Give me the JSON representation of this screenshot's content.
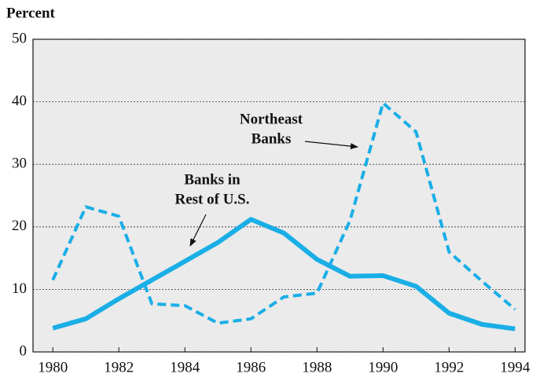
{
  "chart_data": {
    "type": "line",
    "y_axis_label": "Percent",
    "x": [
      1980,
      1981,
      1982,
      1983,
      1984,
      1985,
      1986,
      1987,
      1988,
      1989,
      1990,
      1991,
      1992,
      1993,
      1994
    ],
    "series": [
      {
        "name": "Northeast Banks",
        "color": "#1aaee6",
        "dashed": true,
        "values": [
          11.5,
          23.2,
          21.7,
          7.7,
          7.4,
          4.6,
          5.3,
          8.8,
          9.4,
          21,
          39.8,
          35.2,
          16,
          11.3,
          6.8
        ]
      },
      {
        "name": "Banks in Rest of U.S.",
        "color": "#1aaee6",
        "dashed": false,
        "values": [
          3.8,
          5.3,
          8.5,
          11.5,
          14.5,
          17.5,
          21.2,
          19,
          14.8,
          12.1,
          12.2,
          10.5,
          6.2,
          4.4,
          3.7
        ]
      }
    ],
    "annotations": [
      {
        "text": [
          "Northeast",
          "Banks"
        ]
      },
      {
        "text": [
          "Banks in",
          "Rest of U.S."
        ]
      }
    ],
    "xlim": [
      1979.4,
      1994.3
    ],
    "xticks": [
      1980,
      1982,
      1984,
      1986,
      1988,
      1990,
      1992,
      1994
    ],
    "ylim": [
      0,
      50
    ],
    "yticks": [
      0,
      10,
      20,
      30,
      40,
      50
    ],
    "grid": true
  }
}
